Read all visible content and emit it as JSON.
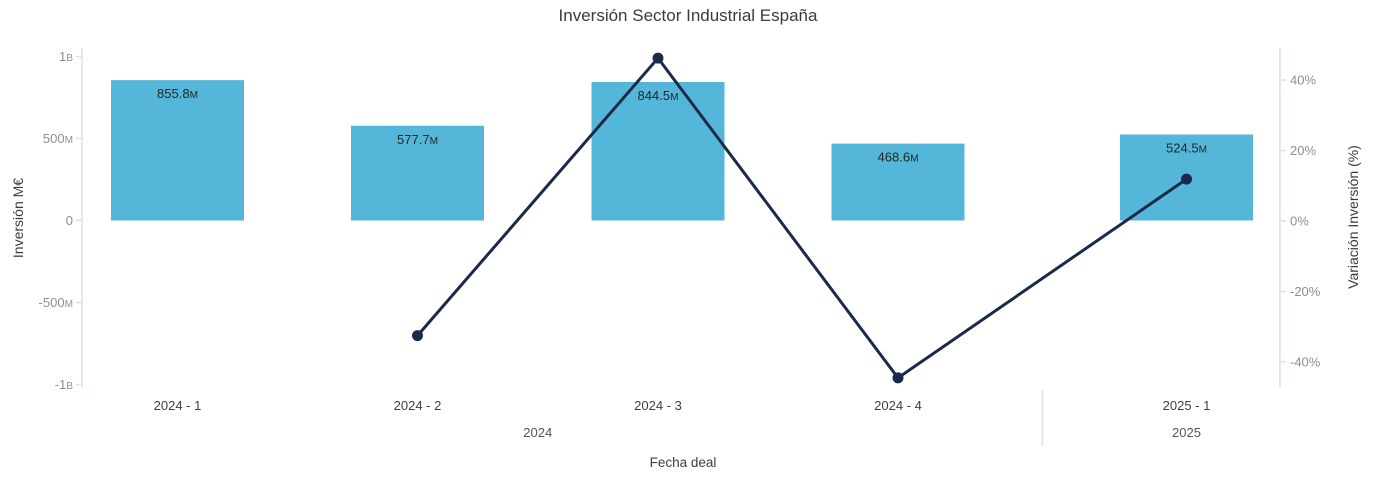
{
  "chart_data": {
    "type": "combo_bar_line",
    "title": "Inversión Sector Industrial España",
    "x_axis": {
      "title": "Fecha deal",
      "tick_labels": [
        "2024 - 1",
        "2024 - 2",
        "2024 - 3",
        "2024 - 4",
        "2025 - 1"
      ],
      "groups": [
        {
          "label": "2024",
          "category_indices": [
            0,
            1,
            2,
            3
          ]
        },
        {
          "label": "2025",
          "category_indices": [
            4
          ]
        }
      ]
    },
    "y_axis_left": {
      "title": "Inversión M€",
      "tick_labels": [
        "1B",
        "500M",
        "0",
        "-500M",
        "-1B"
      ],
      "tick_values_meur": [
        1000,
        500,
        0,
        -500,
        -1000
      ],
      "range_meur": [
        -1052,
        1052
      ]
    },
    "y_axis_right": {
      "title": "Variación Inversión (%)",
      "tick_labels": [
        "40%",
        "20%",
        "0%",
        "-20%",
        "-40%"
      ],
      "tick_values_pct": [
        40,
        20,
        0,
        -20,
        -40
      ],
      "range_pct": [
        -49,
        49
      ]
    },
    "bar_series": {
      "values_meur": [
        855.8,
        577.7,
        844.5,
        468.6,
        524.5
      ],
      "data_labels": [
        "855.8M",
        "577.7M",
        "844.5M",
        "468.6M",
        "524.5M"
      ],
      "color": "#54b6d8",
      "label_color": "#262626"
    },
    "line_series": {
      "values_pct": [
        null,
        -32.5,
        46.2,
        -44.5,
        11.9
      ],
      "color": "#1b2a4a"
    },
    "style_colors": {
      "axis_line": "#d9e2ec",
      "y_tick_label": "#8f8f8f",
      "x_tick_label": "#3f3f3f",
      "group_label": "#565656",
      "divider": "#dde4ec"
    }
  }
}
